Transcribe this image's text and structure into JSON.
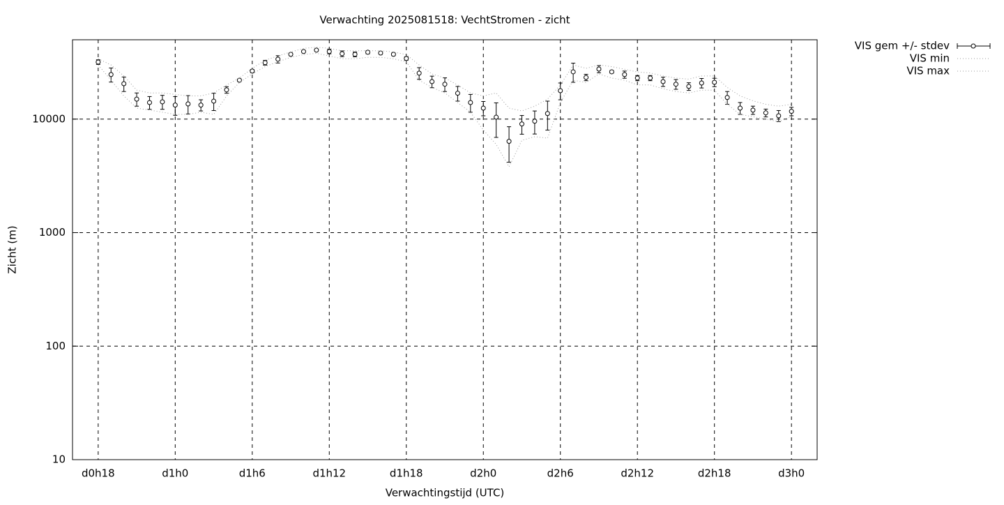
{
  "chart_data": {
    "type": "errorbar",
    "title": "Verwachting 2025081518: VechtStromen - zicht",
    "xlabel": "Verwachtingstijd (UTC)",
    "ylabel": "Zicht (m)",
    "x": [
      18,
      19,
      20,
      21,
      22,
      23,
      24,
      25,
      26,
      27,
      28,
      29,
      30,
      31,
      32,
      33,
      34,
      35,
      36,
      37,
      38,
      39,
      40,
      41,
      42,
      43,
      44,
      45,
      46,
      47,
      48,
      49,
      50,
      51,
      52,
      53,
      54,
      55,
      56,
      57,
      58,
      59,
      60,
      61,
      62,
      63,
      64,
      65,
      66,
      67,
      68,
      69,
      70,
      71,
      72
    ],
    "series": [
      {
        "name": "VIS gem +/- stdev",
        "color": "#000000",
        "style": "errorbar",
        "values": [
          31800,
          24700,
          20500,
          15000,
          14000,
          14200,
          13300,
          13600,
          13300,
          14400,
          18100,
          22000,
          26500,
          31400,
          33700,
          37200,
          39400,
          40500,
          39400,
          37700,
          37200,
          38800,
          38200,
          37200,
          34200,
          25400,
          21400,
          20300,
          16900,
          14000,
          12500,
          10400,
          6370,
          9060,
          9590,
          11200,
          17800,
          26100,
          23300,
          27600,
          26100,
          24700,
          23000,
          23000,
          21400,
          20300,
          19400,
          20800,
          21100,
          15500,
          12500,
          12000,
          11350,
          10700,
          11700
        ],
        "stdev": [
          1500,
          3500,
          3000,
          2000,
          1800,
          2000,
          2500,
          2500,
          1500,
          2500,
          1200,
          600,
          800,
          1500,
          2500,
          1000,
          800,
          600,
          1800,
          2200,
          1800,
          1200,
          800,
          1000,
          1200,
          3000,
          2500,
          2800,
          2500,
          2500,
          1800,
          3500,
          2200,
          1700,
          2200,
          3200,
          3000,
          5000,
          1500,
          2000,
          700,
          1800,
          1200,
          1200,
          2000,
          2000,
          1500,
          2000,
          1800,
          2000,
          1500,
          1000,
          900,
          1200,
          1000
        ]
      },
      {
        "name": "VIS min",
        "color": "#999999",
        "style": "dotted",
        "values": [
          30000,
          22000,
          16000,
          12500,
          12000,
          11500,
          11000,
          11000,
          11500,
          11000,
          16000,
          21000,
          25000,
          29000,
          32000,
          35000,
          37000,
          38000,
          36000,
          34000,
          34000,
          35000,
          35000,
          34000,
          32000,
          22000,
          19000,
          17000,
          14000,
          11500,
          8000,
          6000,
          3800,
          6500,
          7000,
          6800,
          14000,
          22000,
          21000,
          25000,
          23000,
          22000,
          20000,
          20000,
          18500,
          17500,
          17000,
          18000,
          18000,
          13500,
          11000,
          10500,
          10000,
          9500,
          10500
        ]
      },
      {
        "name": "VIS max",
        "color": "#999999",
        "style": "dotted",
        "values": [
          34000,
          30000,
          24000,
          18000,
          17000,
          17000,
          16500,
          16000,
          16000,
          17000,
          20000,
          23000,
          28000,
          33000,
          36000,
          39000,
          42000,
          43000,
          42000,
          40000,
          40000,
          40000,
          40000,
          39000,
          37000,
          30000,
          25000,
          23000,
          20000,
          17000,
          16000,
          17000,
          12500,
          11800,
          13000,
          15000,
          20000,
          30000,
          28000,
          30000,
          29000,
          27500,
          26000,
          25500,
          24000,
          23000,
          22500,
          24000,
          24000,
          19000,
          16000,
          14500,
          13500,
          13000,
          13500
        ]
      }
    ],
    "xlim": [
      16,
      74
    ],
    "xticks": [
      {
        "value": 18,
        "label": "d0h18"
      },
      {
        "value": 24,
        "label": "d1h0"
      },
      {
        "value": 30,
        "label": "d1h6"
      },
      {
        "value": 36,
        "label": "d1h12"
      },
      {
        "value": 42,
        "label": "d1h18"
      },
      {
        "value": 48,
        "label": "d2h0"
      },
      {
        "value": 54,
        "label": "d2h6"
      },
      {
        "value": 60,
        "label": "d2h12"
      },
      {
        "value": 66,
        "label": "d2h18"
      },
      {
        "value": 72,
        "label": "d3h0"
      }
    ],
    "ylim": [
      10,
      50000
    ],
    "yticks": [
      10,
      100,
      1000,
      10000
    ],
    "log_y": true,
    "grid": true,
    "legend": "outside-top-right"
  }
}
